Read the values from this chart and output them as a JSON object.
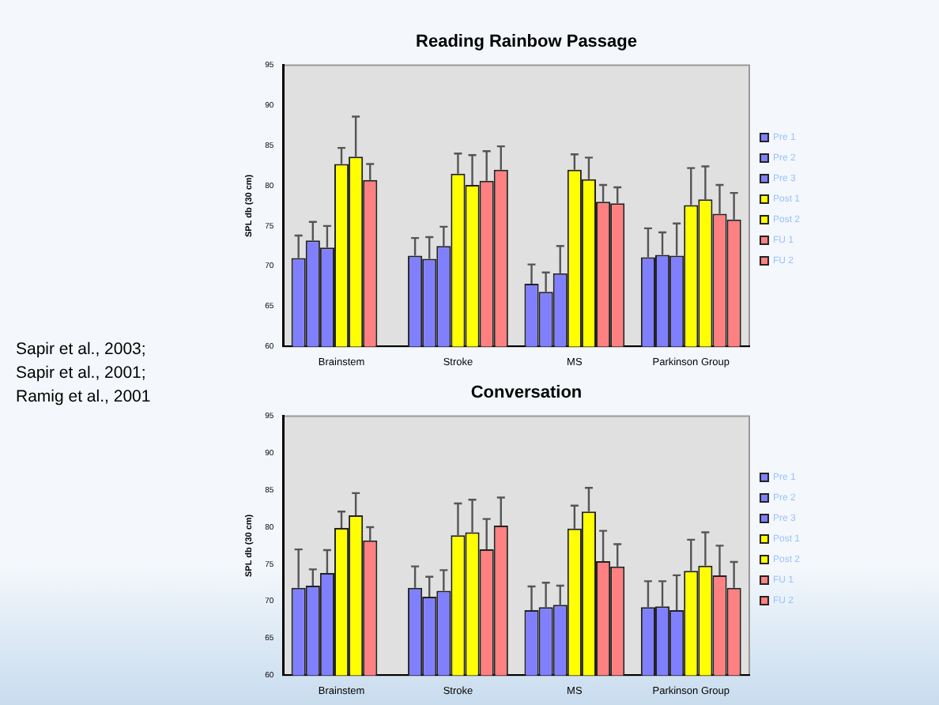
{
  "chart_data": [
    {
      "type": "bar",
      "title": "Reading Rainbow Passage",
      "ylabel": "SPL db (30 cm)",
      "categories": [
        "Brainstem",
        "Stroke",
        "MS",
        "Parkinson Group"
      ],
      "ylim": [
        60,
        95
      ],
      "yticks": [
        60,
        65,
        70,
        75,
        80,
        85,
        90,
        95
      ],
      "grid": false,
      "legend": "right",
      "annotations": [
        "Sapir et al., 2003;\nSapir et al., 2001;\nRamig et al., 2001"
      ],
      "series": [
        {
          "name": "Pre 1",
          "color": "#8080ff",
          "values": [
            71.0,
            71.3,
            67.8,
            71.1
          ],
          "errors": [
            [
              71.0,
              73.8
            ],
            [
              71.3,
              73.5
            ],
            [
              67.8,
              70.2
            ],
            [
              71.1,
              74.7
            ]
          ]
        },
        {
          "name": "Pre 2",
          "color": "#8080ff",
          "values": [
            73.2,
            70.9,
            66.8,
            71.4
          ],
          "errors": [
            [
              73.2,
              75.5
            ],
            [
              70.9,
              73.6
            ],
            [
              66.8,
              69.2
            ],
            [
              71.4,
              74.2
            ]
          ]
        },
        {
          "name": "Pre 3",
          "color": "#8080ff",
          "values": [
            72.3,
            72.5,
            69.1,
            71.3
          ],
          "errors": [
            [
              72.3,
              75.0
            ],
            [
              72.5,
              74.9
            ],
            [
              69.1,
              72.5
            ],
            [
              71.3,
              75.3
            ]
          ]
        },
        {
          "name": "Post 1",
          "color": "#ffff00",
          "values": [
            82.7,
            81.5,
            82.0,
            77.6
          ],
          "errors": [
            [
              82.7,
              84.7
            ],
            [
              81.5,
              84.0
            ],
            [
              82.0,
              83.9
            ],
            [
              77.6,
              82.2
            ]
          ]
        },
        {
          "name": "Post 2",
          "color": "#ffff00",
          "values": [
            83.6,
            80.1,
            80.8,
            78.3
          ],
          "errors": [
            [
              83.6,
              88.6
            ],
            [
              80.1,
              83.8
            ],
            [
              80.8,
              83.5
            ],
            [
              78.3,
              82.4
            ]
          ]
        },
        {
          "name": "FU 1",
          "color": "#ff8080",
          "values": [
            80.7,
            80.6,
            78.0,
            76.5
          ],
          "errors": [
            [
              80.7,
              82.7
            ],
            [
              80.6,
              84.3
            ],
            [
              78.0,
              80.1
            ],
            [
              76.5,
              80.1
            ]
          ]
        },
        {
          "name": "FU 2",
          "color": "#ff8080",
          "values": [
            null,
            82.0,
            77.8,
            75.8
          ],
          "errors": [
            null,
            [
              82.0,
              84.9
            ],
            [
              77.8,
              79.8
            ],
            [
              75.8,
              79.1
            ]
          ]
        }
      ]
    },
    {
      "type": "bar",
      "title": "Conversation",
      "ylabel": "SPL db (30 cm)",
      "categories": [
        "Brainstem",
        "Stroke",
        "MS",
        "Parkinson Group"
      ],
      "ylim": [
        60,
        95
      ],
      "yticks": [
        60,
        65,
        70,
        75,
        80,
        85,
        90,
        95
      ],
      "grid": false,
      "legend": "right",
      "series": [
        {
          "name": "Pre 1",
          "color": "#8080ff",
          "values": [
            71.8,
            71.8,
            68.8,
            69.2
          ],
          "errors": [
            [
              71.8,
              77.0
            ],
            [
              71.8,
              74.7
            ],
            [
              68.8,
              72.0
            ],
            [
              69.2,
              72.7
            ]
          ]
        },
        {
          "name": "Pre 2",
          "color": "#8080ff",
          "values": [
            72.1,
            70.6,
            69.2,
            69.3
          ],
          "errors": [
            [
              72.1,
              74.3
            ],
            [
              70.6,
              73.3
            ],
            [
              69.2,
              72.5
            ],
            [
              69.3,
              72.7
            ]
          ]
        },
        {
          "name": "Pre 3",
          "color": "#8080ff",
          "values": [
            73.8,
            71.4,
            69.5,
            68.8
          ],
          "errors": [
            [
              73.8,
              76.9
            ],
            [
              71.4,
              74.2
            ],
            [
              69.5,
              72.1
            ],
            [
              68.8,
              73.5
            ]
          ]
        },
        {
          "name": "Post 1",
          "color": "#ffff00",
          "values": [
            79.9,
            78.9,
            79.8,
            74.1
          ],
          "errors": [
            [
              79.9,
              82.1
            ],
            [
              78.9,
              83.2
            ],
            [
              79.8,
              82.9
            ],
            [
              74.1,
              78.3
            ]
          ]
        },
        {
          "name": "Post 2",
          "color": "#ffff00",
          "values": [
            81.6,
            79.3,
            82.1,
            74.8
          ],
          "errors": [
            [
              81.6,
              84.6
            ],
            [
              79.3,
              83.7
            ],
            [
              82.1,
              85.3
            ],
            [
              74.8,
              79.3
            ]
          ]
        },
        {
          "name": "FU 1",
          "color": "#ff8080",
          "values": [
            78.2,
            77.0,
            75.4,
            73.5
          ],
          "errors": [
            [
              78.2,
              80.0
            ],
            [
              77.0,
              81.1
            ],
            [
              75.4,
              79.5
            ],
            [
              73.5,
              77.5
            ]
          ]
        },
        {
          "name": "FU 2",
          "color": "#ff8080",
          "values": [
            null,
            80.2,
            74.7,
            71.8
          ],
          "errors": [
            null,
            [
              80.2,
              84.0
            ],
            [
              74.7,
              77.7
            ],
            [
              71.8,
              75.3
            ]
          ]
        }
      ]
    }
  ]
}
